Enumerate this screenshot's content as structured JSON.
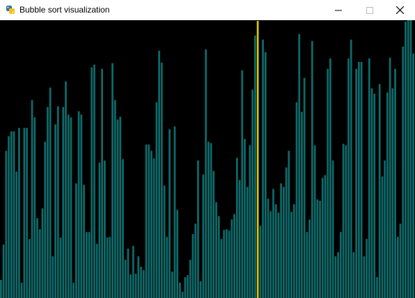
{
  "window": {
    "title": "Bubble sort visualization",
    "icons": {
      "app": "python-icon",
      "minimize": "minimize-icon",
      "maximize": "maximize-icon",
      "close": "close-icon"
    }
  },
  "chart_data": {
    "type": "bar",
    "colors": {
      "bar": "#0d6b6b",
      "highlight": "#d8c800",
      "background": "#000000"
    },
    "highlight_index": 99,
    "ylim": [
      0,
      400
    ],
    "values": [
      26,
      77,
      212,
      233,
      240,
      240,
      182,
      245,
      22,
      245,
      245,
      85,
      285,
      260,
      115,
      99,
      129,
      225,
      275,
      303,
      60,
      250,
      276,
      87,
      275,
      312,
      264,
      260,
      22,
      165,
      269,
      264,
      163,
      95,
      95,
      332,
      336,
      78,
      195,
      330,
      198,
      87,
      88,
      338,
      285,
      257,
      261,
      200,
      55,
      71,
      34,
      75,
      35,
      60,
      45,
      40,
      221,
      221,
      212,
      201,
      282,
      356,
      339,
      162,
      88,
      243,
      38,
      247,
      127,
      22,
      9,
      30,
      33,
      55,
      92,
      107,
      198,
      24,
      178,
      358,
      225,
      223,
      183,
      138,
      118,
      85,
      98,
      99,
      97,
      113,
      121,
      202,
      170,
      328,
      229,
      160,
      220,
      300,
      378,
      399,
      104,
      372,
      354,
      143,
      125,
      157,
      135,
      123,
      165,
      160,
      188,
      212,
      124,
      135,
      282,
      380,
      268,
      317,
      95,
      113,
      370,
      220,
      142,
      140,
      173,
      177,
      330,
      345,
      198,
      60,
      66,
      95,
      222,
      220,
      345,
      372,
      66,
      330,
      340,
      340,
      60,
      85,
      345,
      302,
      294,
      30,
      308,
      175,
      198,
      296,
      346,
      302,
      330,
      88,
      107,
      362,
      398,
      405,
      400,
      352
    ]
  }
}
